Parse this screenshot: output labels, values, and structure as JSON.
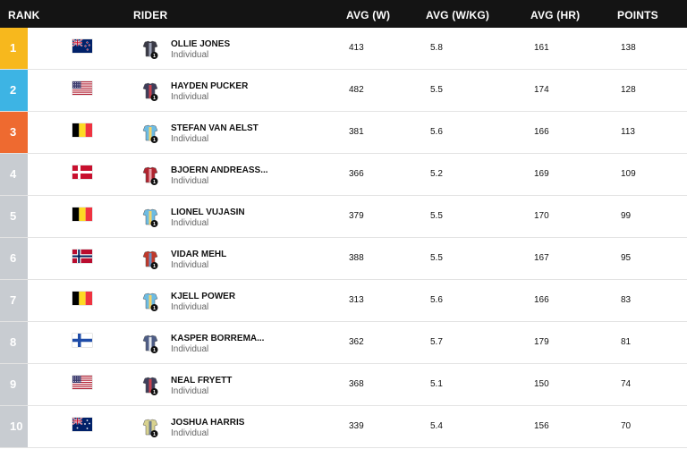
{
  "header": {
    "rank": "RANK",
    "rider": "RIDER",
    "avg_w": "AVG (W)",
    "avg_wkg": "AVG (W/KG)",
    "avg_hr": "AVG (HR)",
    "points": "POINTS"
  },
  "colors": {
    "rank1": "#f7b81d",
    "rank2": "#3db4e4",
    "rank3": "#ee6a30",
    "rank_other": "#c8ccd1",
    "header_bg": "#141414"
  },
  "riders": [
    {
      "rank": "1",
      "country": "nz",
      "name": "OLLIE JONES",
      "team": "Individual",
      "avg_w": "413",
      "avg_wkg": "5.8",
      "avg_hr": "161",
      "points": "138",
      "jersey_badge": "1"
    },
    {
      "rank": "2",
      "country": "us",
      "name": "HAYDEN PUCKER",
      "team": "Individual",
      "avg_w": "482",
      "avg_wkg": "5.5",
      "avg_hr": "174",
      "points": "128",
      "jersey_badge": "1"
    },
    {
      "rank": "3",
      "country": "be",
      "name": "STEFAN VAN AELST",
      "team": "Individual",
      "avg_w": "381",
      "avg_wkg": "5.6",
      "avg_hr": "166",
      "points": "113",
      "jersey_badge": "1"
    },
    {
      "rank": "4",
      "country": "dk",
      "name": "BJOERN ANDREASS...",
      "team": "Individual",
      "avg_w": "366",
      "avg_wkg": "5.2",
      "avg_hr": "169",
      "points": "109",
      "jersey_badge": "1"
    },
    {
      "rank": "5",
      "country": "be",
      "name": "LIONEL VUJASIN",
      "team": "Individual",
      "avg_w": "379",
      "avg_wkg": "5.5",
      "avg_hr": "170",
      "points": "99",
      "jersey_badge": "1"
    },
    {
      "rank": "6",
      "country": "no",
      "name": "VIDAR MEHL",
      "team": "Individual",
      "avg_w": "388",
      "avg_wkg": "5.5",
      "avg_hr": "167",
      "points": "95",
      "jersey_badge": "1"
    },
    {
      "rank": "7",
      "country": "be",
      "name": "KJELL POWER",
      "team": "Individual",
      "avg_w": "313",
      "avg_wkg": "5.6",
      "avg_hr": "166",
      "points": "83",
      "jersey_badge": "1"
    },
    {
      "rank": "8",
      "country": "fi",
      "name": "KASPER BORREMA...",
      "team": "Individual",
      "avg_w": "362",
      "avg_wkg": "5.7",
      "avg_hr": "179",
      "points": "81",
      "jersey_badge": "1"
    },
    {
      "rank": "9",
      "country": "us",
      "name": "NEAL FRYETT",
      "team": "Individual",
      "avg_w": "368",
      "avg_wkg": "5.1",
      "avg_hr": "150",
      "points": "74",
      "jersey_badge": "1"
    },
    {
      "rank": "10",
      "country": "au",
      "name": "JOSHUA HARRIS",
      "team": "Individual",
      "avg_w": "339",
      "avg_wkg": "5.4",
      "avg_hr": "156",
      "points": "70",
      "jersey_badge": "1"
    }
  ]
}
